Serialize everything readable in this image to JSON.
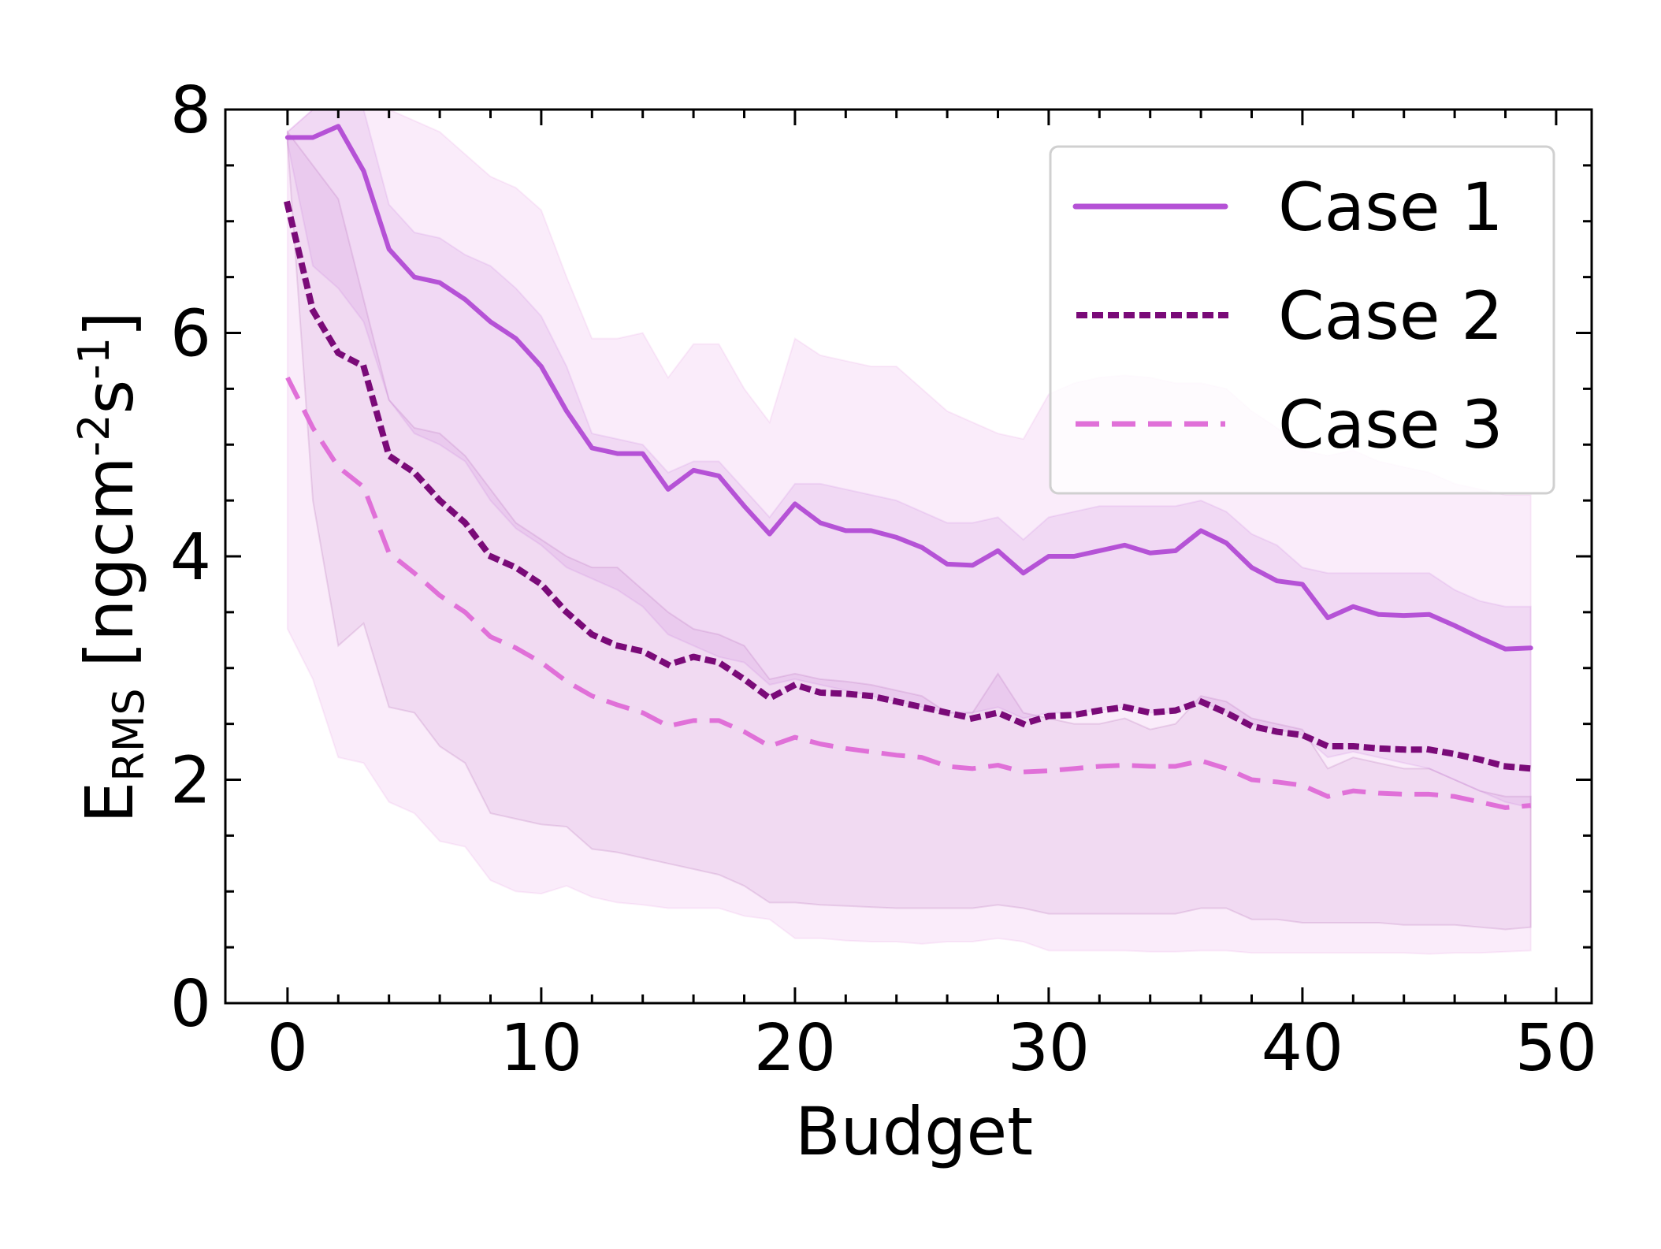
{
  "chart_data": {
    "type": "line",
    "xlabel": "Budget",
    "ylabel": {
      "main": "E",
      "sub": "RMS",
      "unit_pre": " [ngcm",
      "sup1": "-2",
      "mid": "s",
      "sup2": "-1",
      "unit_post": "]"
    },
    "xlim": [
      -2.45,
      51.4
    ],
    "ylim": [
      0,
      8
    ],
    "xticks": [
      0,
      10,
      20,
      30,
      40,
      50
    ],
    "yticks": [
      0,
      2,
      4,
      6,
      8
    ],
    "xtick_labels": [
      "0",
      "10",
      "20",
      "30",
      "40",
      "50"
    ],
    "ytick_labels": [
      "0",
      "2",
      "4",
      "6",
      "8"
    ],
    "grid": false,
    "legend_position": "top-right",
    "x": [
      0,
      1,
      2,
      3,
      4,
      5,
      6,
      7,
      8,
      9,
      10,
      11,
      12,
      13,
      14,
      15,
      16,
      17,
      18,
      19,
      20,
      21,
      22,
      23,
      24,
      25,
      26,
      27,
      28,
      29,
      30,
      31,
      32,
      33,
      34,
      35,
      36,
      37,
      38,
      39,
      40,
      41,
      42,
      43,
      44,
      45,
      46,
      47,
      48,
      49
    ],
    "series": [
      {
        "name": "Case 1",
        "style": "solid",
        "color": "#b552d6",
        "values": [
          7.75,
          7.75,
          7.85,
          7.45,
          6.75,
          6.5,
          6.45,
          6.3,
          6.1,
          5.95,
          5.7,
          5.3,
          4.97,
          4.92,
          4.92,
          4.6,
          4.77,
          4.72,
          4.45,
          4.2,
          4.47,
          4.3,
          4.23,
          4.23,
          4.17,
          4.08,
          3.93,
          3.92,
          4.05,
          3.85,
          4.0,
          4.0,
          4.05,
          4.1,
          4.03,
          4.05,
          4.23,
          4.12,
          3.9,
          3.78,
          3.75,
          3.45,
          3.55,
          3.48,
          3.47,
          3.48,
          3.38,
          3.27,
          3.17,
          3.18
        ],
        "band_lower": [
          7.7,
          6.6,
          6.4,
          6.1,
          5.4,
          5.1,
          5.0,
          4.85,
          4.5,
          4.25,
          4.1,
          3.9,
          3.8,
          3.7,
          3.55,
          3.3,
          3.2,
          3.1,
          3.05,
          2.85,
          2.9,
          2.85,
          2.8,
          2.75,
          2.7,
          2.65,
          2.6,
          2.6,
          2.65,
          2.55,
          2.6,
          2.6,
          2.62,
          2.65,
          2.6,
          2.6,
          2.7,
          2.6,
          2.5,
          2.45,
          2.4,
          2.2,
          2.25,
          2.2,
          2.15,
          2.1,
          2.0,
          1.9,
          1.8,
          1.75
        ],
        "band_upper": [
          7.8,
          8,
          8,
          8,
          7.15,
          6.9,
          6.85,
          6.7,
          6.6,
          6.4,
          6.15,
          5.7,
          5.1,
          5.05,
          5.0,
          4.75,
          4.85,
          4.85,
          4.6,
          4.35,
          4.65,
          4.65,
          4.6,
          4.55,
          4.5,
          4.4,
          4.3,
          4.3,
          4.35,
          4.15,
          4.35,
          4.4,
          4.45,
          4.45,
          4.45,
          4.45,
          4.5,
          4.4,
          4.2,
          4.1,
          3.9,
          3.85,
          3.85,
          3.85,
          3.85,
          3.85,
          3.7,
          3.6,
          3.55,
          3.55
        ]
      },
      {
        "name": "Case 2",
        "style": "dotted",
        "color": "#7a0a78",
        "values": [
          7.15,
          6.2,
          5.82,
          5.7,
          4.9,
          4.75,
          4.5,
          4.3,
          4.0,
          3.9,
          3.75,
          3.5,
          3.3,
          3.2,
          3.15,
          3.03,
          3.1,
          3.05,
          2.9,
          2.73,
          2.85,
          2.78,
          2.77,
          2.75,
          2.7,
          2.65,
          2.6,
          2.55,
          2.6,
          2.5,
          2.57,
          2.58,
          2.62,
          2.65,
          2.6,
          2.62,
          2.7,
          2.6,
          2.48,
          2.43,
          2.4,
          2.3,
          2.3,
          2.28,
          2.27,
          2.27,
          2.23,
          2.18,
          2.12,
          2.1
        ],
        "band_lower": [
          7.7,
          4.5,
          3.2,
          3.4,
          2.65,
          2.6,
          2.3,
          2.15,
          1.7,
          1.65,
          1.6,
          1.58,
          1.38,
          1.35,
          1.3,
          1.25,
          1.2,
          1.15,
          1.05,
          0.9,
          0.9,
          0.88,
          0.87,
          0.86,
          0.85,
          0.85,
          0.85,
          0.85,
          0.88,
          0.85,
          0.8,
          0.8,
          0.8,
          0.8,
          0.8,
          0.8,
          0.85,
          0.85,
          0.75,
          0.75,
          0.72,
          0.72,
          0.72,
          0.72,
          0.7,
          0.7,
          0.7,
          0.68,
          0.66,
          0.68
        ],
        "band_upper": [
          7.8,
          7.5,
          7.2,
          6.3,
          5.4,
          5.15,
          5.1,
          4.9,
          4.6,
          4.3,
          4.15,
          4.0,
          3.9,
          3.9,
          3.7,
          3.5,
          3.35,
          3.3,
          3.2,
          2.9,
          2.95,
          2.9,
          2.88,
          2.85,
          2.8,
          2.75,
          2.6,
          2.6,
          2.95,
          2.6,
          2.55,
          2.5,
          2.5,
          2.55,
          2.45,
          2.5,
          2.75,
          2.7,
          2.55,
          2.5,
          2.45,
          2.1,
          2.2,
          2.15,
          2.1,
          2.1,
          2.0,
          1.9,
          1.85,
          1.85
        ]
      },
      {
        "name": "Case 3",
        "style": "dashed",
        "color": "#e070d8",
        "values": [
          5.6,
          5.15,
          4.8,
          4.62,
          4.03,
          3.85,
          3.65,
          3.5,
          3.28,
          3.18,
          3.05,
          2.88,
          2.75,
          2.67,
          2.6,
          2.48,
          2.53,
          2.53,
          2.43,
          2.3,
          2.38,
          2.32,
          2.28,
          2.25,
          2.22,
          2.2,
          2.12,
          2.1,
          2.13,
          2.07,
          2.08,
          2.1,
          2.12,
          2.13,
          2.12,
          2.12,
          2.17,
          2.1,
          2.0,
          1.98,
          1.95,
          1.85,
          1.9,
          1.88,
          1.87,
          1.87,
          1.85,
          1.8,
          1.75,
          1.77
        ],
        "band_lower": [
          3.35,
          2.9,
          2.2,
          2.15,
          1.8,
          1.7,
          1.45,
          1.4,
          1.1,
          1.0,
          0.98,
          1.05,
          0.95,
          0.9,
          0.88,
          0.85,
          0.85,
          0.85,
          0.78,
          0.75,
          0.58,
          0.58,
          0.56,
          0.55,
          0.55,
          0.53,
          0.55,
          0.55,
          0.58,
          0.55,
          0.47,
          0.47,
          0.47,
          0.47,
          0.46,
          0.46,
          0.47,
          0.47,
          0.45,
          0.45,
          0.45,
          0.45,
          0.45,
          0.45,
          0.45,
          0.44,
          0.45,
          0.45,
          0.46,
          0.47
        ],
        "band_upper": [
          7.8,
          8,
          8,
          8,
          8,
          7.9,
          7.8,
          7.6,
          7.4,
          7.3,
          7.1,
          6.5,
          5.95,
          5.95,
          6.0,
          5.6,
          5.9,
          5.9,
          5.5,
          5.2,
          5.95,
          5.8,
          5.75,
          5.7,
          5.7,
          5.5,
          5.3,
          5.2,
          5.1,
          5.05,
          5.45,
          5.55,
          5.6,
          5.62,
          5.6,
          5.55,
          5.55,
          5.5,
          5.3,
          5.15,
          4.95,
          4.9,
          4.95,
          4.85,
          4.8,
          4.75,
          4.65,
          4.6,
          4.55,
          4.55
        ]
      }
    ]
  }
}
